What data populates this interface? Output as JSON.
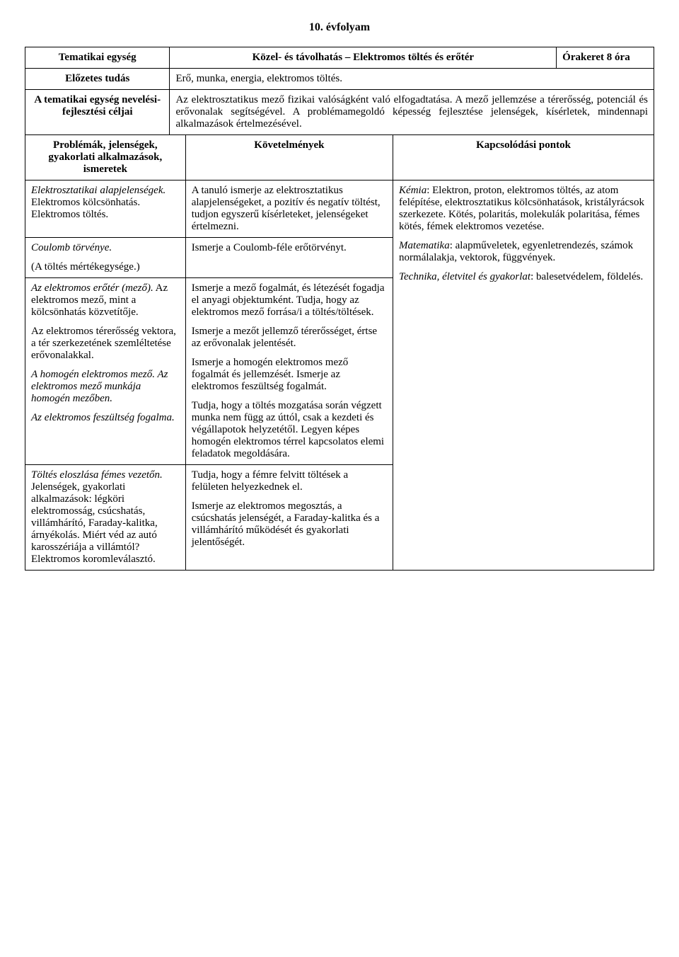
{
  "page_title": "10. évfolyam",
  "labels": {
    "thematic_unit": "Tematikai egység",
    "prior_knowledge": "Előzetes tudás",
    "educational_goals": "A tematikai egység nevelési-fejlesztési céljai",
    "problems_header": "Problémák, jelenségek, gyakorlati alkalmazások, ismeretek",
    "requirements": "Követelmények",
    "connection_points": "Kapcsolódási pontok"
  },
  "thematic_unit_title": "Közel- és távolhatás – Elektromos töltés és erőtér",
  "hours_label": "Órakeret 8 óra",
  "prior_knowledge_text": "Erő, munka, energia, elektromos töltés.",
  "goals_text": "Az elektrosztatikus mező fizikai valóságként való elfogadtatása. A mező jellemzése a térerősség, potenciál és erővonalak segítségével. A problémamegoldó képesség fejlesztése jelenségek, kísérletek, mindennapi alkalmazások értelmezésével.",
  "rows": [
    {
      "left_blocks": [
        {
          "runs": [
            {
              "t": "Elektrosztatikai alapjelenségek.",
              "i": true
            },
            {
              "t": " Elektromos kölcsönhatás. Elektromos töltés.",
              "i": false
            }
          ]
        }
      ],
      "mid_blocks": [
        {
          "runs": [
            {
              "t": "A tanuló ismerje az elektrosztatikus alapjelenségeket, a pozitív és negatív töltést, tudjon egyszerű kísérleteket, jelenségeket értelmezni.",
              "i": false
            }
          ]
        }
      ]
    },
    {
      "left_blocks": [
        {
          "runs": [
            {
              "t": "Coulomb törvénye.",
              "i": true
            }
          ]
        },
        {
          "runs": [
            {
              "t": "(A töltés mértékegysége.)",
              "i": false
            }
          ]
        }
      ],
      "mid_blocks": [
        {
          "runs": [
            {
              "t": "Ismerje a Coulomb-féle erőtörvényt.",
              "i": false
            }
          ]
        }
      ]
    },
    {
      "left_blocks": [
        {
          "runs": [
            {
              "t": "Az elektromos erőtér (mező).",
              "i": true
            },
            {
              "t": " Az elektromos mező, mint a kölcsönhatás közvetítője.",
              "i": false
            }
          ]
        },
        {
          "runs": [
            {
              "t": "Az elektromos térerősség vektora, a tér szerkezetének szemléltetése erővonalakkal.",
              "i": false
            }
          ]
        },
        {
          "runs": [
            {
              "t": "A homogén elektromos mező. Az elektromos mező munkája homogén mezőben.",
              "i": true
            }
          ]
        },
        {
          "runs": [
            {
              "t": "Az elektromos feszültség fogalma.",
              "i": true
            }
          ]
        }
      ],
      "mid_blocks": [
        {
          "runs": [
            {
              "t": "Ismerje a mező fogalmát, és létezését fogadja el anyagi objektumként. Tudja, hogy az elektromos mező forrása/i a töltés/töltések.",
              "i": false
            }
          ]
        },
        {
          "runs": [
            {
              "t": "Ismerje a mezőt jellemző térerősséget, értse az erővonalak jelentését.",
              "i": false
            }
          ]
        },
        {
          "runs": [
            {
              "t": "Ismerje a homogén elektromos mező fogalmát és jellemzését. Ismerje az elektromos feszültség fogalmát.",
              "i": false
            }
          ]
        },
        {
          "runs": [
            {
              "t": "Tudja, hogy a töltés mozgatása során végzett munka nem függ az úttól, csak a kezdeti és végállapotok helyzetétől. Legyen képes homogén elektromos térrel kapcsolatos elemi feladatok megoldására.",
              "i": false
            }
          ]
        }
      ]
    },
    {
      "left_blocks": [
        {
          "runs": [
            {
              "t": "Töltés eloszlása fémes vezetőn.",
              "i": true
            },
            {
              "t": " Jelenségek, gyakorlati alkalmazások: légköri elektromosság, csúcshatás, villámhárító, Faraday-kalitka, árnyékolás. Miért véd az autó karosszériája a villámtól? Elektromos koromleválasztó.",
              "i": false
            }
          ]
        }
      ],
      "mid_blocks": [
        {
          "runs": [
            {
              "t": "Tudja, hogy a fémre felvitt töltések a felületen helyezkednek el.",
              "i": false
            }
          ]
        },
        {
          "runs": [
            {
              "t": "Ismerje az elektromos megosztás, a csúcshatás jelenségét, a Faraday-kalitka és a villámhárító működését és gyakorlati jelentőségét.",
              "i": false
            }
          ]
        }
      ]
    }
  ],
  "connections": [
    {
      "runs": [
        {
          "t": "Kémia",
          "i": true
        },
        {
          "t": ": Elektron, proton, elektromos töltés, az atom felépítése, elektrosztatikus kölcsönhatások, kristályrácsok szerkezete. Kötés, polaritás, molekulák polaritása, fémes kötés, fémek elektromos vezetése.",
          "i": false
        }
      ]
    },
    {
      "runs": [
        {
          "t": "Matematika",
          "i": true
        },
        {
          "t": ": alapműveletek, egyenletrendezés, számok normálalakja, vektorok, függvények.",
          "i": false
        }
      ]
    },
    {
      "runs": [
        {
          "t": "Technika, életvitel és gyakorlat",
          "i": true
        },
        {
          "t": ": balesetvédelem, földelés.",
          "i": false
        }
      ]
    }
  ]
}
